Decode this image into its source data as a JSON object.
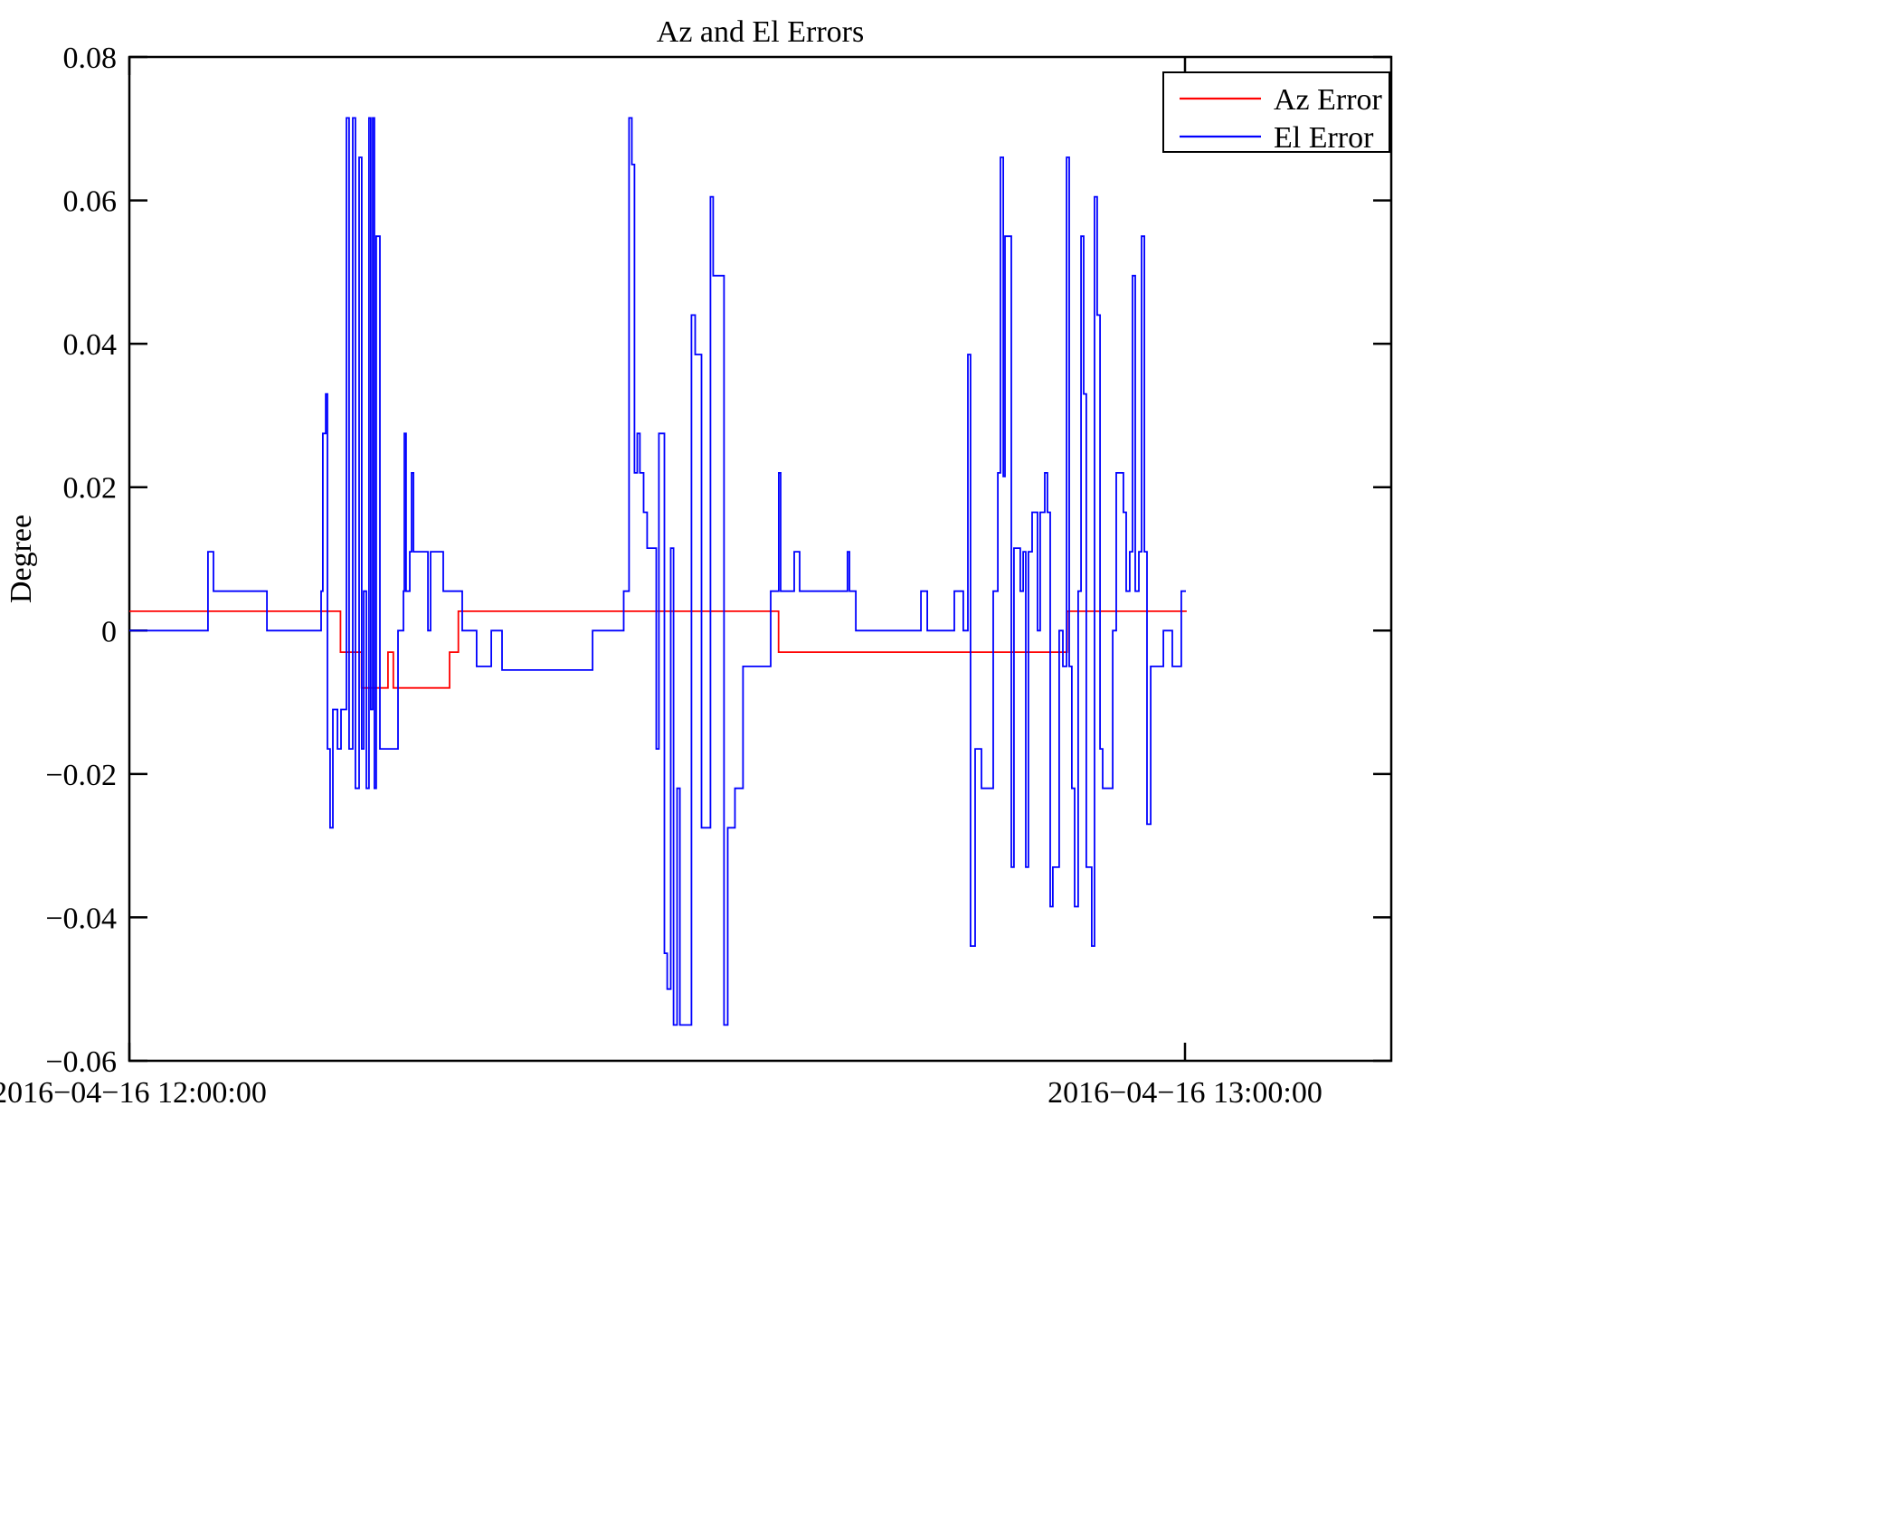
{
  "figure": {
    "background": "#ffffff",
    "frame_color": "#000000"
  },
  "chart_data": {
    "type": "line",
    "title": "Az and El Errors",
    "xlabel": "",
    "ylabel": "Degree",
    "x_unit": "minutes after 2016-04-16 12:00:00",
    "xlim": [
      0,
      71.7
    ],
    "ylim": [
      -0.06,
      0.08
    ],
    "grid": false,
    "step": true,
    "yticks": [
      -0.06,
      -0.04,
      -0.02,
      0,
      0.02,
      0.04,
      0.06,
      0.08
    ],
    "ytick_labels": [
      "−0.06",
      "−0.04",
      "−0.02",
      "0",
      "0.02",
      "0.04",
      "0.06",
      "0.08"
    ],
    "xticks": [
      0,
      60
    ],
    "xtick_labels": [
      "2016−04−16 12:00:00",
      "2016−04−16 13:00:00"
    ],
    "legend": {
      "position": "top-right",
      "entries": [
        {
          "label": "Az Error",
          "color": "#ff0000"
        },
        {
          "label": "El Error",
          "color": "#0000ff"
        }
      ]
    },
    "series": [
      {
        "name": "Az Error",
        "color": "#ff0000",
        "points": [
          [
            0,
            0.0027
          ],
          [
            12.0,
            -0.003
          ],
          [
            13.2,
            -0.008
          ],
          [
            14.7,
            -0.003
          ],
          [
            15.0,
            -0.008
          ],
          [
            18.2,
            -0.003
          ],
          [
            18.7,
            0.0027
          ],
          [
            36.9,
            -0.003
          ],
          [
            53.3,
            0.0027
          ],
          [
            60.1,
            0.0027
          ]
        ]
      },
      {
        "name": "El Error",
        "color": "#0000ff",
        "points": [
          [
            0,
            0
          ],
          [
            4.47,
            0.011
          ],
          [
            4.78,
            0.0055
          ],
          [
            7.82,
            0
          ],
          [
            10.9,
            0.0055
          ],
          [
            11.0,
            0.0275
          ],
          [
            11.16,
            0.033
          ],
          [
            11.26,
            -0.0165
          ],
          [
            11.41,
            -0.0275
          ],
          [
            11.57,
            -0.011
          ],
          [
            11.83,
            -0.0165
          ],
          [
            12.03,
            -0.011
          ],
          [
            12.34,
            0.0715
          ],
          [
            12.49,
            -0.0165
          ],
          [
            12.7,
            0.0715
          ],
          [
            12.85,
            -0.022
          ],
          [
            13.06,
            0.066
          ],
          [
            13.21,
            -0.0165
          ],
          [
            13.32,
            0.0055
          ],
          [
            13.47,
            -0.022
          ],
          [
            13.62,
            0.0715
          ],
          [
            13.72,
            -0.011
          ],
          [
            13.83,
            0.0715
          ],
          [
            13.93,
            -0.022
          ],
          [
            14.03,
            0.055
          ],
          [
            14.24,
            -0.0165
          ],
          [
            15.27,
            0
          ],
          [
            15.58,
            0.0055
          ],
          [
            15.63,
            0.0275
          ],
          [
            15.73,
            0.0055
          ],
          [
            15.94,
            0.011
          ],
          [
            16.04,
            0.022
          ],
          [
            16.15,
            0.011
          ],
          [
            16.97,
            0
          ],
          [
            17.12,
            0.011
          ],
          [
            17.84,
            0.0055
          ],
          [
            18.92,
            0
          ],
          [
            19.74,
            -0.005
          ],
          [
            20.57,
            0
          ],
          [
            21.18,
            -0.0055
          ],
          [
            26.33,
            0
          ],
          [
            28.1,
            0.0055
          ],
          [
            28.4,
            0.0715
          ],
          [
            28.56,
            0.065
          ],
          [
            28.71,
            0.022
          ],
          [
            28.87,
            0.0275
          ],
          [
            29.02,
            0.022
          ],
          [
            29.23,
            0.0165
          ],
          [
            29.43,
            0.0115
          ],
          [
            29.95,
            -0.0165
          ],
          [
            30.1,
            0.0275
          ],
          [
            30.41,
            -0.045
          ],
          [
            30.57,
            -0.05
          ],
          [
            30.77,
            0.0115
          ],
          [
            30.93,
            -0.055
          ],
          [
            31.13,
            -0.022
          ],
          [
            31.29,
            -0.055
          ],
          [
            31.95,
            0.044
          ],
          [
            32.16,
            0.0385
          ],
          [
            32.52,
            -0.0275
          ],
          [
            33.03,
            0.0605
          ],
          [
            33.18,
            0.0495
          ],
          [
            33.8,
            -0.055
          ],
          [
            34.01,
            -0.0275
          ],
          [
            34.42,
            -0.022
          ],
          [
            34.88,
            -0.005
          ],
          [
            36.45,
            0.0055
          ],
          [
            36.91,
            0.022
          ],
          [
            37.02,
            0.0055
          ],
          [
            37.79,
            0.011
          ],
          [
            38.1,
            0.0055
          ],
          [
            40.82,
            0.011
          ],
          [
            40.93,
            0.0055
          ],
          [
            41.29,
            0
          ],
          [
            44.99,
            0.0055
          ],
          [
            45.35,
            0
          ],
          [
            46.89,
            0.0055
          ],
          [
            47.4,
            0
          ],
          [
            47.66,
            0.0385
          ],
          [
            47.81,
            -0.044
          ],
          [
            48.07,
            -0.0165
          ],
          [
            48.43,
            -0.022
          ],
          [
            49.1,
            0.0055
          ],
          [
            49.36,
            0.022
          ],
          [
            49.51,
            0.066
          ],
          [
            49.67,
            0.0215
          ],
          [
            49.77,
            0.055
          ],
          [
            50.13,
            -0.033
          ],
          [
            50.28,
            0.0115
          ],
          [
            50.64,
            0.0055
          ],
          [
            50.8,
            0.011
          ],
          [
            50.95,
            -0.033
          ],
          [
            51.1,
            0.011
          ],
          [
            51.31,
            0.0165
          ],
          [
            51.62,
            0
          ],
          [
            51.77,
            0.0165
          ],
          [
            52.03,
            0.022
          ],
          [
            52.18,
            0.0165
          ],
          [
            52.34,
            -0.0385
          ],
          [
            52.49,
            -0.033
          ],
          [
            52.85,
            0
          ],
          [
            53.06,
            -0.005
          ],
          [
            53.27,
            0.066
          ],
          [
            53.42,
            -0.005
          ],
          [
            53.57,
            -0.022
          ],
          [
            53.73,
            -0.0385
          ],
          [
            53.93,
            0.0055
          ],
          [
            54.09,
            0.055
          ],
          [
            54.24,
            0.033
          ],
          [
            54.39,
            -0.033
          ],
          [
            54.7,
            -0.044
          ],
          [
            54.86,
            0.0605
          ],
          [
            55.01,
            0.044
          ],
          [
            55.17,
            -0.0165
          ],
          [
            55.32,
            -0.022
          ],
          [
            55.89,
            0
          ],
          [
            56.09,
            0.022
          ],
          [
            56.5,
            0.0165
          ],
          [
            56.66,
            0.0055
          ],
          [
            56.86,
            0.011
          ],
          [
            57.02,
            0.0495
          ],
          [
            57.17,
            0.0055
          ],
          [
            57.38,
            0.011
          ],
          [
            57.53,
            0.055
          ],
          [
            57.69,
            0.011
          ],
          [
            57.84,
            -0.027
          ],
          [
            58.05,
            -0.005
          ],
          [
            58.77,
            0
          ],
          [
            59.28,
            -0.005
          ],
          [
            59.79,
            0.0055
          ],
          [
            60.05,
            0.0055
          ]
        ]
      }
    ]
  }
}
